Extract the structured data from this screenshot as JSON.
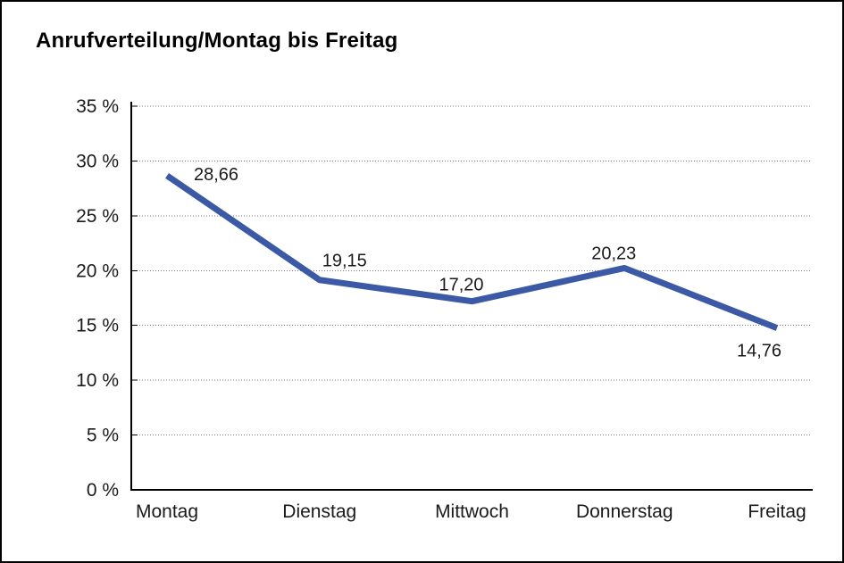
{
  "chart_data": {
    "type": "line",
    "title": "Anrufverteilung/Montag bis Freitag",
    "categories": [
      "Montag",
      "Dienstag",
      "Mittwoch",
      "Donnerstag",
      "Freitag"
    ],
    "values": [
      28.66,
      19.15,
      17.2,
      20.23,
      14.76
    ],
    "value_labels": [
      "28,66",
      "19,15",
      "17,20",
      "20,23",
      "14,76"
    ],
    "xlabel": "",
    "ylabel": "",
    "ylim": [
      0,
      35
    ],
    "y_tick_step": 5,
    "y_ticks": [
      {
        "value": 0,
        "label": "0 %"
      },
      {
        "value": 5,
        "label": "5 %"
      },
      {
        "value": 10,
        "label": "10 %"
      },
      {
        "value": 15,
        "label": "15 %"
      },
      {
        "value": 20,
        "label": "20 %"
      },
      {
        "value": 25,
        "label": "25 %"
      },
      {
        "value": 30,
        "label": "30 %"
      },
      {
        "value": 35,
        "label": "35 %"
      }
    ],
    "grid": "horizontal-dotted",
    "legend_position": "none",
    "series_color": "#3B59A5",
    "axis_color": "#000000",
    "gridline_color": "#777777",
    "text_color": "#1a1a1a",
    "background_color": "#ffffff"
  }
}
